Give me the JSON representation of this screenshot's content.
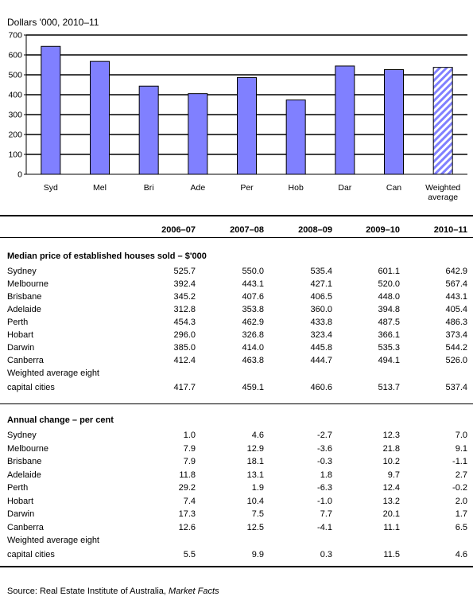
{
  "chart_data": {
    "type": "bar",
    "title": "Dollars '000, 2010–11",
    "categories": [
      "Syd",
      "Mel",
      "Bri",
      "Ade",
      "Per",
      "Hob",
      "Dar",
      "Can",
      "Weighted average"
    ],
    "values": [
      642.9,
      567.4,
      443.1,
      405.4,
      486.3,
      373.4,
      544.2,
      526.0,
      537.4
    ],
    "ylim": [
      0,
      700
    ],
    "yticks": [
      0,
      100,
      200,
      300,
      400,
      500,
      600,
      700
    ],
    "grid": true,
    "colors": {
      "bar": "#8080ff",
      "hatch_bar": "#8080ff",
      "grid": "#000000"
    },
    "hatched_last_bar": true
  },
  "table": {
    "columns": [
      "2006–07",
      "2007–08",
      "2008–09",
      "2009–10",
      "2010–11"
    ],
    "sections": [
      {
        "title": "Median price of established houses sold – $'000",
        "rows": [
          {
            "label": "Sydney",
            "values": [
              "525.7",
              "550.0",
              "535.4",
              "601.1",
              "642.9"
            ]
          },
          {
            "label": "Melbourne",
            "values": [
              "392.4",
              "443.1",
              "427.1",
              "520.0",
              "567.4"
            ]
          },
          {
            "label": "Brisbane",
            "values": [
              "345.2",
              "407.6",
              "406.5",
              "448.0",
              "443.1"
            ]
          },
          {
            "label": "Adelaide",
            "values": [
              "312.8",
              "353.8",
              "360.0",
              "394.8",
              "405.4"
            ]
          },
          {
            "label": "Perth",
            "values": [
              "454.3",
              "462.9",
              "433.8",
              "487.5",
              "486.3"
            ]
          },
          {
            "label": "Hobart",
            "values": [
              "296.0",
              "326.8",
              "323.4",
              "366.1",
              "373.4"
            ]
          },
          {
            "label": "Darwin",
            "values": [
              "385.0",
              "414.0",
              "445.8",
              "535.3",
              "544.2"
            ]
          },
          {
            "label": "Canberra",
            "values": [
              "412.4",
              "463.8",
              "444.7",
              "494.1",
              "526.0"
            ]
          }
        ],
        "total": {
          "label1": "Weighted average eight",
          "label2": "capital cities",
          "values": [
            "417.7",
            "459.1",
            "460.6",
            "513.7",
            "537.4"
          ]
        }
      },
      {
        "title": "Annual change – per cent",
        "rows": [
          {
            "label": "Sydney",
            "values": [
              "1.0",
              "4.6",
              "-2.7",
              "12.3",
              "7.0"
            ]
          },
          {
            "label": "Melbourne",
            "values": [
              "7.9",
              "12.9",
              "-3.6",
              "21.8",
              "9.1"
            ]
          },
          {
            "label": "Brisbane",
            "values": [
              "7.9",
              "18.1",
              "-0.3",
              "10.2",
              "-1.1"
            ]
          },
          {
            "label": "Adelaide",
            "values": [
              "11.8",
              "13.1",
              "1.8",
              "9.7",
              "2.7"
            ]
          },
          {
            "label": "Perth",
            "values": [
              "29.2",
              "1.9",
              "-6.3",
              "12.4",
              "-0.2"
            ]
          },
          {
            "label": "Hobart",
            "values": [
              "7.4",
              "10.4",
              "-1.0",
              "13.2",
              "2.0"
            ]
          },
          {
            "label": "Darwin",
            "values": [
              "17.3",
              "7.5",
              "7.7",
              "20.1",
              "1.7"
            ]
          },
          {
            "label": "Canberra",
            "values": [
              "12.6",
              "12.5",
              "-4.1",
              "11.1",
              "6.5"
            ]
          }
        ],
        "total": {
          "label1": "Weighted average eight",
          "label2": "capital cities",
          "values": [
            "5.5",
            "9.9",
            "0.3",
            "11.5",
            "4.6"
          ]
        }
      }
    ]
  },
  "source": {
    "prefix": "Source: Real Estate Institute of Australia, ",
    "italic": "Market Facts"
  }
}
